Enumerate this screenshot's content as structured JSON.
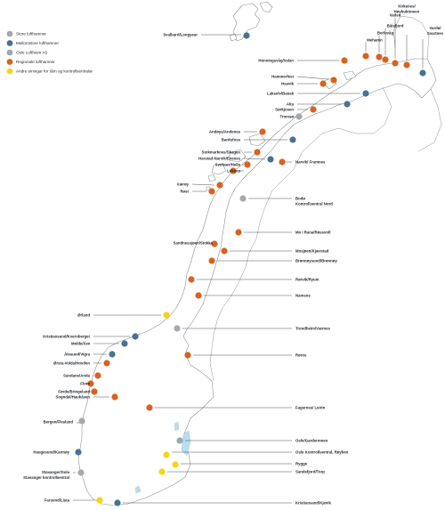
{
  "colors": {
    "store": "#a5a9ad",
    "mellomstore": "#4a7192",
    "oslo": "#97a8b3",
    "regionale": "#d9621f",
    "andre": "#f7d418"
  },
  "legend": [
    {
      "key": "store",
      "label": "Store lufthamner"
    },
    {
      "key": "mellomstore",
      "label": "Mellomstore lufthamner"
    },
    {
      "key": "oslo",
      "label": "Oslo Lufthavn AS"
    },
    {
      "key": "regionale",
      "label": "Regionale lufthamner"
    },
    {
      "key": "andre",
      "label": "Andre einingar for tårn og kontrollsentralar"
    }
  ],
  "airports": [
    {
      "id": "svalbard",
      "label": "Svalbard/Longyear",
      "type": "mellomstore"
    },
    {
      "id": "kirkenes",
      "label": "Kirkenes/\nHøybuktmoen",
      "type": "regionale"
    },
    {
      "id": "vadso",
      "label": "Vadsø",
      "type": "regionale"
    },
    {
      "id": "batsfjord",
      "label": "Båtsfjord",
      "type": "regionale"
    },
    {
      "id": "berlevag",
      "label": "Berlevåg",
      "type": "regionale"
    },
    {
      "id": "mehamn",
      "label": "Mehamn",
      "type": "regionale"
    },
    {
      "id": "vardo",
      "label": "Vardø/\nSvartnes",
      "type": "mellomstore"
    },
    {
      "id": "honningsvag",
      "label": "Honningsvåg/Valan",
      "type": "regionale"
    },
    {
      "id": "hammerfest",
      "label": "Hammerfest",
      "type": "regionale"
    },
    {
      "id": "hasvik",
      "label": "Hasvik",
      "type": "regionale"
    },
    {
      "id": "lakselv",
      "label": "Lakselv/Banak",
      "type": "mellomstore"
    },
    {
      "id": "alta",
      "label": "Alta",
      "type": "mellomstore"
    },
    {
      "id": "sorkjosen",
      "label": "Sørkjosen",
      "type": "regionale"
    },
    {
      "id": "tromso",
      "label": "Tromsø",
      "type": "store"
    },
    {
      "id": "andoya",
      "label": "Andøya/Andenes",
      "type": "regionale"
    },
    {
      "id": "bardufoss",
      "label": "Bardufoss",
      "type": "mellomstore"
    },
    {
      "id": "stokmarknes",
      "label": "Stokmarknes/Skagen",
      "type": "regionale"
    },
    {
      "id": "harstad",
      "label": "Harstad-Narvik/Evenes",
      "type": "mellomstore"
    },
    {
      "id": "svolvaer",
      "label": "Svolvær/Helle",
      "type": "regionale"
    },
    {
      "id": "leknes",
      "label": "Leknes",
      "type": "regionale"
    },
    {
      "id": "narvik",
      "label": "Narvik/ Framnes",
      "type": "regionale"
    },
    {
      "id": "vaeroy",
      "label": "Værøy",
      "type": "regionale"
    },
    {
      "id": "rost",
      "label": "Røst",
      "type": "regionale"
    },
    {
      "id": "bodo",
      "label": "Bodø\nKontrollsentral Nord",
      "type": "store"
    },
    {
      "id": "moirana",
      "label": "Mo i Rana/Røssvoll",
      "type": "regionale"
    },
    {
      "id": "sandnessjoen",
      "label": "Sandnessjøen/Stokka",
      "type": "regionale"
    },
    {
      "id": "mosjoen",
      "label": "Mosjøen/Kjærstad",
      "type": "regionale"
    },
    {
      "id": "bronnoysund",
      "label": "Brønnøysund/Brønnøy",
      "type": "regionale"
    },
    {
      "id": "rorvik",
      "label": "Rørvik/Ryum",
      "type": "regionale"
    },
    {
      "id": "namsos",
      "label": "Namsos",
      "type": "regionale"
    },
    {
      "id": "orland",
      "label": "Ørland",
      "type": "andre"
    },
    {
      "id": "trondheim",
      "label": "Trondheim/Værnes",
      "type": "store"
    },
    {
      "id": "kristiansund",
      "label": "Kristiansund/Kvernberget",
      "type": "mellomstore"
    },
    {
      "id": "molde",
      "label": "Molde/Årø",
      "type": "mellomstore"
    },
    {
      "id": "alesund",
      "label": "Ålesund/Vigra",
      "type": "mellomstore"
    },
    {
      "id": "orsta",
      "label": "Ørsta-Volda/Hovden",
      "type": "regionale"
    },
    {
      "id": "roros",
      "label": "Røros",
      "type": "regionale"
    },
    {
      "id": "sandane",
      "label": "Sandane/Anda",
      "type": "regionale"
    },
    {
      "id": "floro",
      "label": "Florø",
      "type": "regionale"
    },
    {
      "id": "forde",
      "label": "Førde/Bringeland",
      "type": "regionale"
    },
    {
      "id": "sogndal",
      "label": "Sogndal/Haukåsen",
      "type": "regionale"
    },
    {
      "id": "fagernes",
      "label": "Fagernes/ Leirin",
      "type": "regionale"
    },
    {
      "id": "bergen",
      "label": "Bergen/Flesland",
      "type": "store"
    },
    {
      "id": "gardermoen",
      "label": "Oslo/Gardermoen",
      "type": "oslo"
    },
    {
      "id": "royken",
      "label": "Oslo Kontrollsentral, Røyken",
      "type": "andre"
    },
    {
      "id": "haugesund",
      "label": "Haugesund/Karmøy",
      "type": "mellomstore"
    },
    {
      "id": "rygge",
      "label": "Rygge",
      "type": "andre"
    },
    {
      "id": "sandefjord",
      "label": "Sandefjord/Torp",
      "type": "andre"
    },
    {
      "id": "stavanger",
      "label": "Stavanger/Sola\nStavanger kontrollsentral",
      "type": "store"
    },
    {
      "id": "farsund",
      "label": "Farsund/Lista",
      "type": "andre"
    },
    {
      "id": "kristiansand",
      "label": "Kristiansand/Kjevik",
      "type": "mellomstore"
    }
  ]
}
